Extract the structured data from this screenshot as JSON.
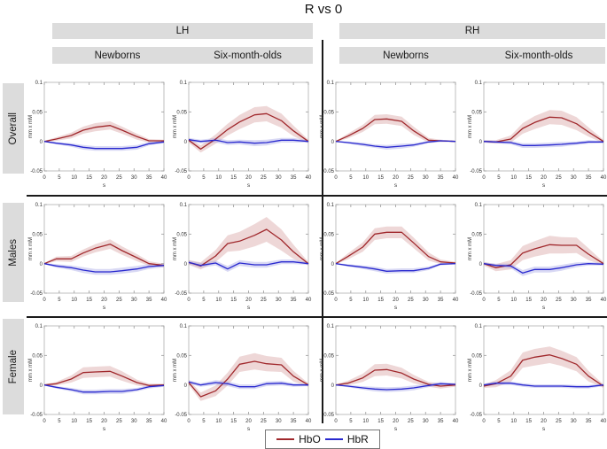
{
  "title": "R vs 0",
  "columns": {
    "groups": [
      {
        "label": "LH"
      },
      {
        "label": "RH"
      }
    ],
    "subgroups": [
      "Newborns",
      "Six-month-olds"
    ]
  },
  "rows": [
    "Overall",
    "Males",
    "Female"
  ],
  "axis": {
    "xlabel": "s",
    "ylabel": "mm x mM",
    "xticks": [
      0,
      5,
      10,
      15,
      20,
      25,
      30,
      35,
      40
    ],
    "yticks": [
      "0.1",
      "0.05",
      "0",
      "-0.05"
    ],
    "xlim": [
      0,
      40
    ],
    "ylim": [
      -0.05,
      0.1
    ],
    "grid": false
  },
  "colors": {
    "HbO": {
      "line": "#a0282c",
      "band": "#cf8d8d"
    },
    "HbR": {
      "line": "#2929cf",
      "band": "#9191e0"
    },
    "header_bg": "#dcdcdc",
    "divider": "#1a1a1a"
  },
  "legend": [
    {
      "label": "HbO",
      "series": "HbO"
    },
    {
      "label": "HbR",
      "series": "HbR"
    }
  ],
  "chart_data": [
    {
      "type": "line",
      "row": "Overall",
      "hemisphere": "LH",
      "group": "Newborns",
      "x": [
        0,
        4,
        9,
        13,
        17,
        22,
        26,
        31,
        35,
        40
      ],
      "series": [
        {
          "name": "HbO",
          "mean": [
            0,
            0.004,
            0.01,
            0.019,
            0.024,
            0.027,
            0.019,
            0.008,
            0.001,
            0.001
          ],
          "band": [
            0.001,
            0.003,
            0.005,
            0.006,
            0.007,
            0.007,
            0.006,
            0.005,
            0.003,
            0.002
          ]
        },
        {
          "name": "HbR",
          "mean": [
            0,
            -0.003,
            -0.006,
            -0.01,
            -0.012,
            -0.012,
            -0.012,
            -0.01,
            -0.004,
            -0.001
          ],
          "band": [
            0.001,
            0.002,
            0.003,
            0.004,
            0.004,
            0.004,
            0.004,
            0.004,
            0.003,
            0.002
          ]
        }
      ]
    },
    {
      "type": "line",
      "row": "Overall",
      "hemisphere": "LH",
      "group": "Six-month-olds",
      "x": [
        0,
        4,
        9,
        13,
        17,
        22,
        26,
        31,
        35,
        40
      ],
      "series": [
        {
          "name": "HbO",
          "mean": [
            0.002,
            -0.013,
            0.004,
            0.02,
            0.033,
            0.045,
            0.047,
            0.035,
            0.018,
            0.0
          ],
          "band": [
            0.004,
            0.006,
            0.008,
            0.01,
            0.012,
            0.013,
            0.013,
            0.012,
            0.009,
            0.003
          ]
        },
        {
          "name": "HbR",
          "mean": [
            0.003,
            0.0,
            0.002,
            -0.002,
            -0.001,
            -0.003,
            -0.002,
            0.002,
            0.002,
            0.0
          ],
          "band": [
            0.003,
            0.003,
            0.004,
            0.004,
            0.004,
            0.005,
            0.005,
            0.004,
            0.004,
            0.002
          ]
        }
      ]
    },
    {
      "type": "line",
      "row": "Overall",
      "hemisphere": "RH",
      "group": "Newborns",
      "x": [
        0,
        4,
        9,
        13,
        17,
        22,
        26,
        31,
        35,
        40
      ],
      "series": [
        {
          "name": "HbO",
          "mean": [
            0,
            0.009,
            0.022,
            0.037,
            0.038,
            0.034,
            0.018,
            0.002,
            0.001,
            0.0
          ],
          "band": [
            0.001,
            0.004,
            0.006,
            0.008,
            0.008,
            0.008,
            0.007,
            0.004,
            0.002,
            0.001
          ]
        },
        {
          "name": "HbR",
          "mean": [
            0,
            -0.002,
            -0.005,
            -0.008,
            -0.01,
            -0.008,
            -0.006,
            -0.001,
            0.001,
            0.0
          ],
          "band": [
            0.001,
            0.002,
            0.003,
            0.003,
            0.004,
            0.004,
            0.003,
            0.002,
            0.002,
            0.001
          ]
        }
      ]
    },
    {
      "type": "line",
      "row": "Overall",
      "hemisphere": "RH",
      "group": "Six-month-olds",
      "x": [
        0,
        4,
        9,
        13,
        17,
        22,
        26,
        31,
        35,
        40
      ],
      "series": [
        {
          "name": "HbO",
          "mean": [
            0,
            -0.001,
            0.004,
            0.022,
            0.032,
            0.041,
            0.04,
            0.03,
            0.016,
            0.0
          ],
          "band": [
            0.002,
            0.003,
            0.006,
            0.009,
            0.011,
            0.012,
            0.012,
            0.011,
            0.008,
            0.003
          ]
        },
        {
          "name": "HbR",
          "mean": [
            0,
            -0.001,
            -0.002,
            -0.007,
            -0.007,
            -0.006,
            -0.005,
            -0.003,
            -0.001,
            -0.001
          ],
          "band": [
            0.002,
            0.002,
            0.003,
            0.004,
            0.004,
            0.004,
            0.004,
            0.003,
            0.003,
            0.002
          ]
        }
      ]
    },
    {
      "type": "line",
      "row": "Males",
      "hemisphere": "LH",
      "group": "Newborns",
      "x": [
        0,
        4,
        9,
        13,
        17,
        22,
        26,
        31,
        35,
        40
      ],
      "series": [
        {
          "name": "HbO",
          "mean": [
            0,
            0.008,
            0.008,
            0.018,
            0.026,
            0.033,
            0.022,
            0.01,
            0.0,
            -0.003
          ],
          "band": [
            0.001,
            0.004,
            0.005,
            0.006,
            0.007,
            0.008,
            0.007,
            0.006,
            0.004,
            0.003
          ]
        },
        {
          "name": "HbR",
          "mean": [
            0,
            -0.004,
            -0.007,
            -0.011,
            -0.014,
            -0.014,
            -0.012,
            -0.009,
            -0.005,
            -0.003
          ],
          "band": [
            0.001,
            0.003,
            0.004,
            0.005,
            0.005,
            0.005,
            0.005,
            0.005,
            0.004,
            0.003
          ]
        }
      ]
    },
    {
      "type": "line",
      "row": "Males",
      "hemisphere": "LH",
      "group": "Six-month-olds",
      "x": [
        0,
        4,
        9,
        13,
        17,
        22,
        26,
        31,
        35,
        40
      ],
      "series": [
        {
          "name": "HbO",
          "mean": [
            0.002,
            -0.004,
            0.013,
            0.034,
            0.038,
            0.048,
            0.058,
            0.04,
            0.02,
            0.0
          ],
          "band": [
            0.004,
            0.006,
            0.01,
            0.014,
            0.016,
            0.019,
            0.021,
            0.018,
            0.012,
            0.003
          ]
        },
        {
          "name": "HbR",
          "mean": [
            0.002,
            -0.003,
            0.001,
            -0.009,
            0.001,
            -0.002,
            -0.002,
            0.003,
            0.003,
            0.0
          ],
          "band": [
            0.003,
            0.004,
            0.004,
            0.005,
            0.005,
            0.005,
            0.005,
            0.004,
            0.004,
            0.002
          ]
        }
      ]
    },
    {
      "type": "line",
      "row": "Males",
      "hemisphere": "RH",
      "group": "Newborns",
      "x": [
        0,
        4,
        9,
        13,
        17,
        22,
        26,
        31,
        35,
        40
      ],
      "series": [
        {
          "name": "HbO",
          "mean": [
            0,
            0.012,
            0.028,
            0.05,
            0.053,
            0.053,
            0.035,
            0.012,
            0.003,
            0.001
          ],
          "band": [
            0.001,
            0.005,
            0.008,
            0.01,
            0.01,
            0.01,
            0.009,
            0.007,
            0.004,
            0.002
          ]
        },
        {
          "name": "HbR",
          "mean": [
            0,
            -0.003,
            -0.006,
            -0.009,
            -0.013,
            -0.012,
            -0.012,
            -0.008,
            -0.001,
            0.0
          ],
          "band": [
            0.001,
            0.002,
            0.003,
            0.004,
            0.004,
            0.004,
            0.004,
            0.003,
            0.002,
            0.001
          ]
        }
      ]
    },
    {
      "type": "line",
      "row": "Males",
      "hemisphere": "RH",
      "group": "Six-month-olds",
      "x": [
        0,
        4,
        9,
        13,
        17,
        22,
        26,
        31,
        35,
        40
      ],
      "series": [
        {
          "name": "HbO",
          "mean": [
            0,
            -0.007,
            -0.002,
            0.018,
            0.025,
            0.032,
            0.031,
            0.031,
            0.016,
            0.0
          ],
          "band": [
            0.003,
            0.006,
            0.008,
            0.012,
            0.013,
            0.015,
            0.014,
            0.013,
            0.01,
            0.003
          ]
        },
        {
          "name": "HbR",
          "mean": [
            0,
            -0.003,
            -0.004,
            -0.016,
            -0.01,
            -0.01,
            -0.007,
            -0.002,
            0.0,
            -0.001
          ],
          "band": [
            0.002,
            0.003,
            0.004,
            0.005,
            0.005,
            0.005,
            0.005,
            0.004,
            0.003,
            0.002
          ]
        }
      ]
    },
    {
      "type": "line",
      "row": "Female",
      "hemisphere": "LH",
      "group": "Newborns",
      "x": [
        0,
        4,
        9,
        13,
        17,
        22,
        26,
        31,
        35,
        40
      ],
      "series": [
        {
          "name": "HbO",
          "mean": [
            0,
            0.002,
            0.01,
            0.021,
            0.022,
            0.023,
            0.015,
            0.004,
            -0.001,
            0.0
          ],
          "band": [
            0.001,
            0.003,
            0.006,
            0.009,
            0.009,
            0.009,
            0.008,
            0.005,
            0.003,
            0.002
          ]
        },
        {
          "name": "HbR",
          "mean": [
            0,
            -0.004,
            -0.008,
            -0.012,
            -0.012,
            -0.011,
            -0.011,
            -0.008,
            -0.003,
            -0.001
          ],
          "band": [
            0.001,
            0.002,
            0.003,
            0.004,
            0.004,
            0.004,
            0.004,
            0.003,
            0.003,
            0.002
          ]
        }
      ]
    },
    {
      "type": "line",
      "row": "Female",
      "hemisphere": "LH",
      "group": "Six-month-olds",
      "x": [
        0,
        4,
        9,
        13,
        17,
        22,
        26,
        31,
        35,
        40
      ],
      "series": [
        {
          "name": "HbO",
          "mean": [
            0.004,
            -0.02,
            -0.01,
            0.01,
            0.035,
            0.04,
            0.036,
            0.034,
            0.015,
            0.0
          ],
          "band": [
            0.004,
            0.007,
            0.009,
            0.011,
            0.013,
            0.014,
            0.013,
            0.012,
            0.009,
            0.003
          ]
        },
        {
          "name": "HbR",
          "mean": [
            0.005,
            0.0,
            0.004,
            0.002,
            -0.003,
            -0.003,
            0.002,
            0.003,
            0.0,
            0.0
          ],
          "band": [
            0.003,
            0.003,
            0.004,
            0.004,
            0.004,
            0.004,
            0.004,
            0.004,
            0.003,
            0.002
          ]
        }
      ]
    },
    {
      "type": "line",
      "row": "Female",
      "hemisphere": "RH",
      "group": "Newborns",
      "x": [
        0,
        4,
        9,
        13,
        17,
        22,
        26,
        31,
        35,
        40
      ],
      "series": [
        {
          "name": "HbO",
          "mean": [
            0,
            0.003,
            0.012,
            0.025,
            0.026,
            0.02,
            0.01,
            0.001,
            -0.002,
            0.0
          ],
          "band": [
            0.001,
            0.004,
            0.007,
            0.01,
            0.01,
            0.009,
            0.007,
            0.004,
            0.004,
            0.003
          ]
        },
        {
          "name": "HbR",
          "mean": [
            0,
            -0.002,
            -0.005,
            -0.007,
            -0.008,
            -0.007,
            -0.005,
            -0.001,
            0.002,
            0.001
          ],
          "band": [
            0.001,
            0.002,
            0.003,
            0.004,
            0.004,
            0.004,
            0.004,
            0.003,
            0.003,
            0.002
          ]
        }
      ]
    },
    {
      "type": "line",
      "row": "Female",
      "hemisphere": "RH",
      "group": "Six-month-olds",
      "x": [
        0,
        4,
        9,
        13,
        17,
        22,
        26,
        31,
        35,
        40
      ],
      "series": [
        {
          "name": "HbO",
          "mean": [
            -0.002,
            0.002,
            0.015,
            0.042,
            0.047,
            0.051,
            0.045,
            0.035,
            0.015,
            -0.002
          ],
          "band": [
            0.003,
            0.006,
            0.01,
            0.013,
            0.014,
            0.014,
            0.013,
            0.012,
            0.009,
            0.003
          ]
        },
        {
          "name": "HbR",
          "mean": [
            0,
            0.003,
            0.003,
            0.0,
            -0.002,
            -0.002,
            -0.002,
            -0.003,
            -0.003,
            0.0
          ],
          "band": [
            0.002,
            0.003,
            0.003,
            0.003,
            0.003,
            0.003,
            0.003,
            0.003,
            0.003,
            0.002
          ]
        }
      ]
    }
  ]
}
